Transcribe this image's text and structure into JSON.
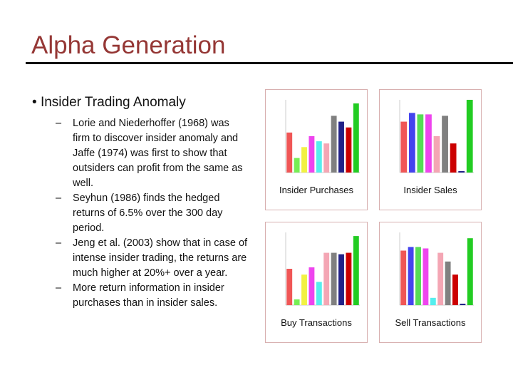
{
  "header": {
    "title": "Alpha Generation"
  },
  "bullet": {
    "text": "Insider Trading Anomaly",
    "items": [
      "Lorie and Niederhoffer (1968) was firm to discover insider anomaly and Jaffe (1974) was first to show that outsiders can profit from the same as well.",
      "Seyhun (1986) finds the hedged returns of 6.5% over the 300 day period.",
      "Jeng et al. (2003) show that in case of intense insider trading, the returns are much higher at 20%+ over a year.",
      "More return information in insider purchases than in insider sales."
    ]
  },
  "figures": [
    {
      "caption": "Insider Purchases",
      "ylim": [
        0,
        100
      ],
      "values": [
        55,
        20,
        35,
        50,
        43,
        40,
        78,
        70,
        62,
        95
      ],
      "colors": [
        "#f05656",
        "#77ee55",
        "#f2f244",
        "#ee44ee",
        "#55eeee",
        "#f4a6b4",
        "#808080",
        "#222288",
        "#cc0000",
        "#22cc22"
      ]
    },
    {
      "caption": "Insider Sales",
      "ylim": [
        0,
        100
      ],
      "values": [
        70,
        82,
        80,
        80,
        50,
        78,
        40,
        2,
        100
      ],
      "colors": [
        "#f05656",
        "#4444ee",
        "#55dd55",
        "#ee44ee",
        "#f4a6b4",
        "#808080",
        "#cc0000",
        "#222288",
        "#22cc22"
      ]
    },
    {
      "caption": "Buy Transactions",
      "ylim": [
        0,
        100
      ],
      "values": [
        50,
        8,
        42,
        52,
        32,
        72,
        72,
        70,
        72,
        95
      ],
      "colors": [
        "#f05656",
        "#77ee55",
        "#f2f244",
        "#ee44ee",
        "#55eeee",
        "#f4a6b4",
        "#808080",
        "#222288",
        "#cc0000",
        "#22cc22"
      ]
    },
    {
      "caption": "Sell Transactions",
      "ylim": [
        0,
        100
      ],
      "values": [
        75,
        80,
        80,
        78,
        10,
        72,
        60,
        42,
        2,
        92
      ],
      "colors": [
        "#f05656",
        "#4444ee",
        "#55dd55",
        "#ee44ee",
        "#55eeee",
        "#f4a6b4",
        "#808080",
        "#cc0000",
        "#222288",
        "#22cc22"
      ]
    }
  ]
}
